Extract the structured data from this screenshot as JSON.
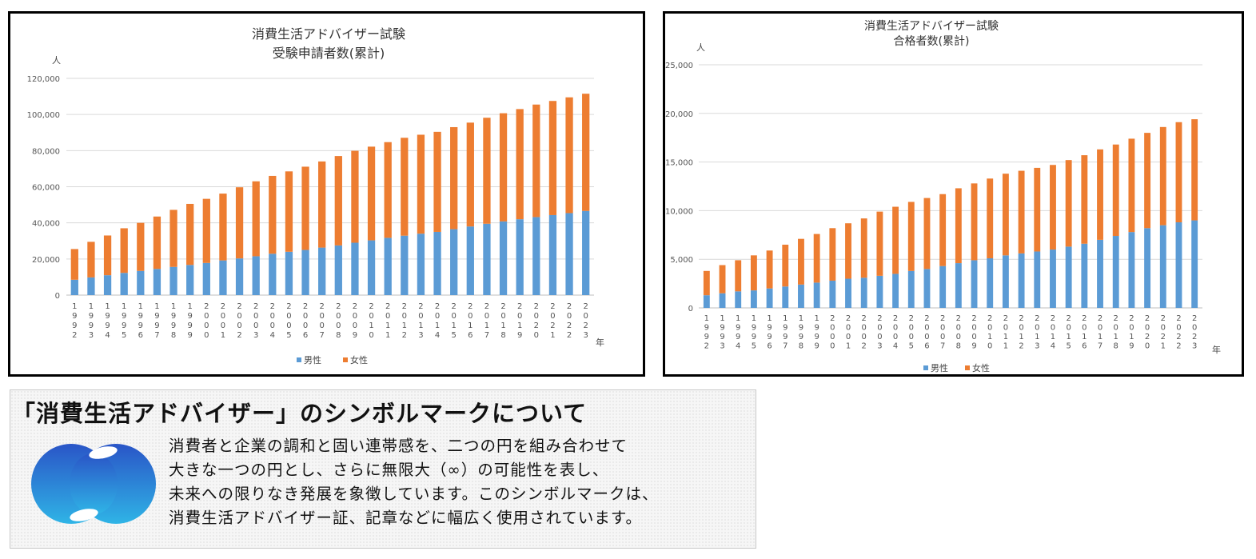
{
  "chart_data": [
    {
      "type": "bar",
      "stacked": true,
      "title": "消費生活アドバイザー試験",
      "subtitle": "受験申請者数(累計)",
      "ylabel": "人",
      "xlabel": "年",
      "ylim": [
        0,
        120000
      ],
      "yticks": [
        "0",
        "20,000",
        "40,000",
        "60,000",
        "80,000",
        "100,000",
        "120,000"
      ],
      "grid": true,
      "legend_position": "bottom",
      "categories": [
        "1992",
        "1993",
        "1994",
        "1995",
        "1996",
        "1997",
        "1998",
        "1999",
        "2000",
        "2001",
        "2002",
        "2003",
        "2004",
        "2005",
        "2006",
        "2007",
        "2008",
        "2009",
        "2010",
        "2011",
        "2012",
        "2013",
        "2014",
        "2015",
        "2016",
        "2017",
        "2018",
        "2019",
        "2020",
        "2021",
        "2022",
        "2023"
      ],
      "series": [
        {
          "name": "男性",
          "color": "#5B9BD5",
          "values": [
            8500,
            9800,
            11000,
            12300,
            13400,
            14500,
            15600,
            16700,
            17800,
            19200,
            20300,
            21500,
            22900,
            24000,
            25000,
            26300,
            27500,
            29000,
            30300,
            31700,
            32900,
            34000,
            35000,
            36500,
            38000,
            39500,
            40800,
            42000,
            43200,
            44300,
            45400,
            46600
          ]
        },
        {
          "name": "女性",
          "color": "#ED7D31",
          "values": [
            17000,
            19700,
            22000,
            24700,
            26600,
            29000,
            31600,
            33800,
            35500,
            37000,
            39400,
            41500,
            43100,
            44500,
            46100,
            47700,
            49500,
            50900,
            51900,
            53000,
            54200,
            54800,
            55400,
            56500,
            57500,
            58700,
            59900,
            61000,
            62300,
            63200,
            64100,
            64900
          ]
        }
      ]
    },
    {
      "type": "bar",
      "stacked": true,
      "title": "消費生活アドバイザー試験",
      "subtitle": "合格者数(累計)",
      "ylabel": "人",
      "xlabel": "年",
      "ylim": [
        0,
        25000
      ],
      "yticks": [
        "0",
        "5,000",
        "10,000",
        "15,000",
        "20,000",
        "25,000"
      ],
      "grid": true,
      "legend_position": "bottom",
      "categories": [
        "1992",
        "1993",
        "1994",
        "1995",
        "1996",
        "1997",
        "1998",
        "1999",
        "2000",
        "2001",
        "2002",
        "2003",
        "2004",
        "2005",
        "2006",
        "2007",
        "2008",
        "2009",
        "2010",
        "2011",
        "2012",
        "2013",
        "2014",
        "2015",
        "2016",
        "2017",
        "2018",
        "2019",
        "2020",
        "2021",
        "2022",
        "2023"
      ],
      "series": [
        {
          "name": "男性",
          "color": "#5B9BD5",
          "values": [
            1300,
            1500,
            1700,
            1800,
            2000,
            2200,
            2400,
            2600,
            2800,
            3000,
            3100,
            3300,
            3500,
            3800,
            4000,
            4300,
            4600,
            4900,
            5100,
            5400,
            5600,
            5800,
            6000,
            6300,
            6600,
            7000,
            7400,
            7800,
            8200,
            8500,
            8800,
            9000
          ]
        },
        {
          "name": "女性",
          "color": "#ED7D31",
          "values": [
            2500,
            2900,
            3200,
            3600,
            3900,
            4300,
            4700,
            5000,
            5400,
            5700,
            6100,
            6600,
            6900,
            7100,
            7300,
            7400,
            7700,
            7900,
            8200,
            8400,
            8500,
            8600,
            8700,
            8900,
            9100,
            9300,
            9400,
            9600,
            9800,
            10100,
            10300,
            10400
          ]
        }
      ]
    }
  ],
  "symbol": {
    "heading": "「消費生活アドバイザー」のシンボルマークについて",
    "lines": [
      "消費者と企業の調和と固い連帯感を、二つの円を組み合わせて",
      "大きな一つの円とし、さらに無限大（∞）の可能性を表し、",
      "未来への限りなき発展を象徴しています。このシンボルマークは、",
      "消費生活アドバイザー証、記章などに幅広く使用されています。"
    ],
    "logo_icon": "symbol-mark-icon"
  }
}
